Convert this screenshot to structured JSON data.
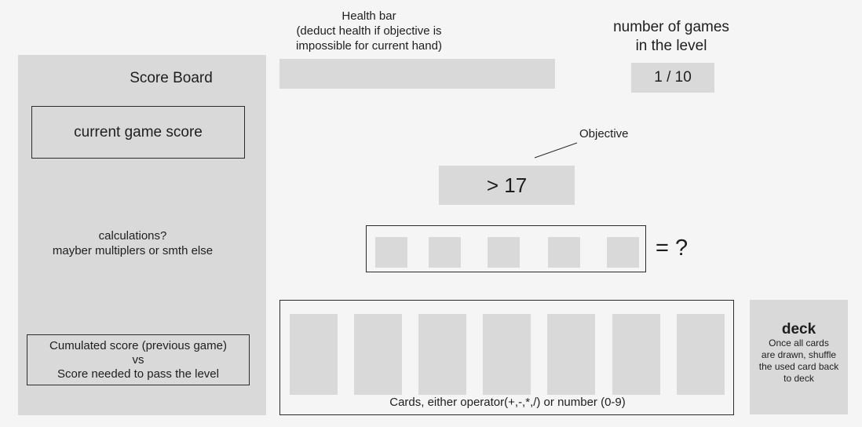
{
  "health": {
    "title": "Health bar",
    "note_line1": "(deduct health if objective is",
    "note_line2": "impossible for current hand)"
  },
  "games": {
    "title_line1": "number of games",
    "title_line2": "in the level",
    "counter": "1 / 10"
  },
  "scoreboard": {
    "title": "Score Board",
    "current_score_label": "current game score",
    "calc_line1": "calculations?",
    "calc_line2": "mayber multiplers or smth else",
    "cumulated_line1": "Cumulated score (previous game)",
    "cumulated_line2": "vs",
    "cumulated_line3": "Score needed to pass the level"
  },
  "objective": {
    "label": "Objective",
    "value": "> 17"
  },
  "equation": {
    "result": "= ?"
  },
  "hand": {
    "caption": "Cards, either operator(+,-,*,/) or number (0-9)"
  },
  "deck": {
    "title": "deck",
    "note_line1": "Once all cards",
    "note_line2": "are drawn, shuffle",
    "note_line3": "the used card back",
    "note_line4": "to deck"
  },
  "colors": {
    "background": "#f5f5f5",
    "block": "#d9d9d9",
    "stroke": "#2b2b2b",
    "text": "#1e1e1e"
  }
}
